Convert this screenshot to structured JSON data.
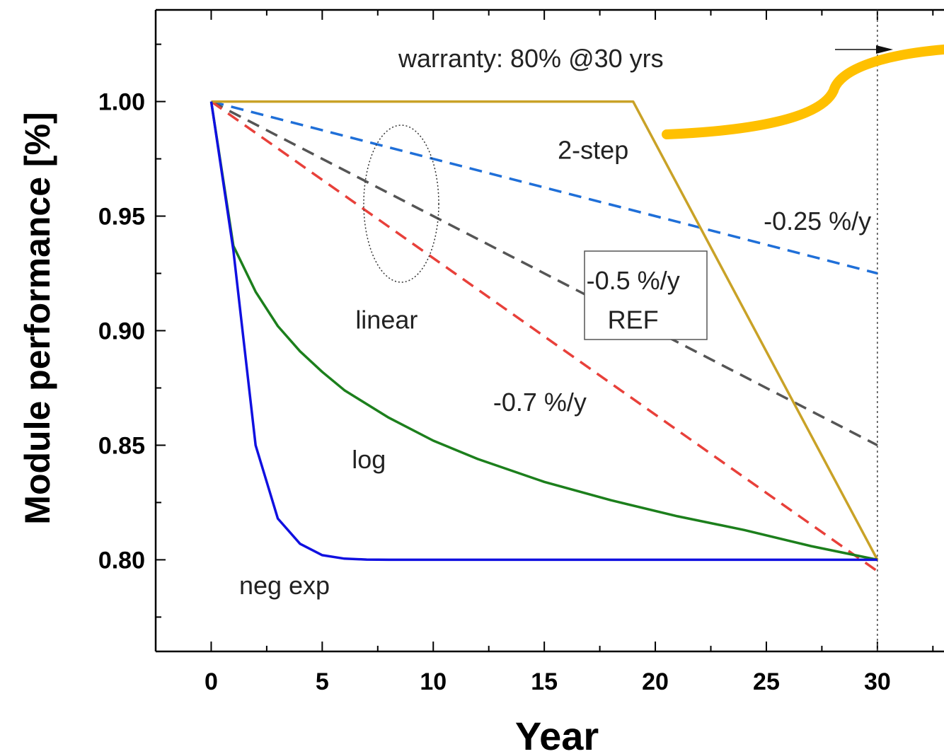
{
  "chart_data": {
    "type": "line",
    "title": "",
    "xlabel": "Year",
    "ylabel": "Module performance [%]",
    "xlim": [
      -2.5,
      33
    ],
    "ylim": [
      0.76,
      1.04
    ],
    "xticks": [
      0,
      5,
      10,
      15,
      20,
      25,
      30
    ],
    "xtick_labels": [
      "0",
      "5",
      "10",
      "15",
      "20",
      "25",
      "30"
    ],
    "yticks": [
      0.8,
      0.85,
      0.9,
      0.95,
      1.0
    ],
    "ytick_labels": [
      "0.80",
      "0.85",
      "0.90",
      "0.95",
      "1.00"
    ],
    "grid": false,
    "legend": "none",
    "series": [
      {
        "color": "#1f6fd8",
        "style": "dashed",
        "x": [
          0,
          30
        ],
        "y": [
          1.0,
          0.925
        ]
      },
      {
        "color": "#555555",
        "style": "dashed",
        "x": [
          0,
          30
        ],
        "y": [
          1.0,
          0.85
        ]
      },
      {
        "color": "#e8403a",
        "style": "dashed",
        "x": [
          0,
          30
        ],
        "y": [
          1.0,
          0.795
        ]
      },
      {
        "color": "#c9a227",
        "style": "solid",
        "x": [
          0,
          19,
          30
        ],
        "y": [
          1.0,
          1.0,
          0.8
        ]
      },
      {
        "color": "#1c7f1c",
        "style": "solid",
        "x": [
          0,
          1,
          2,
          3,
          4,
          5,
          6,
          8,
          10,
          12,
          15,
          18,
          21,
          24,
          27,
          30
        ],
        "y": [
          1.0,
          0.937,
          0.917,
          0.902,
          0.891,
          0.882,
          0.874,
          0.862,
          0.852,
          0.844,
          0.834,
          0.826,
          0.819,
          0.813,
          0.806,
          0.8
        ]
      },
      {
        "color": "#1010e0",
        "style": "solid",
        "x": [
          0,
          1,
          2,
          3,
          4,
          5,
          6,
          7,
          8,
          10,
          15,
          20,
          25,
          30
        ],
        "y": [
          1.0,
          0.935,
          0.85,
          0.818,
          0.807,
          0.802,
          0.8005,
          0.8001,
          0.8,
          0.8,
          0.8,
          0.8,
          0.8,
          0.8
        ]
      }
    ],
    "warranty_line": {
      "x": 30
    },
    "annotations": [
      {
        "text": "warranty: 80% @30 yrs",
        "x": 14.4,
        "y": 1.019
      },
      {
        "text": "2-step",
        "x": 17.2,
        "y": 0.979
      },
      {
        "text": "-0.25 %/y",
        "x": 27.3,
        "y": 0.948
      },
      {
        "text": "-0.5 %/y",
        "x": 19.0,
        "y": 0.922
      },
      {
        "text": "REF",
        "x": 19.0,
        "y": 0.905
      },
      {
        "text": "linear",
        "x": 7.9,
        "y": 0.905
      },
      {
        "text": "-0.7 %/y",
        "x": 14.8,
        "y": 0.869
      },
      {
        "text": "log",
        "x": 7.1,
        "y": 0.844
      },
      {
        "text": "neg exp",
        "x": 3.3,
        "y": 0.789
      }
    ],
    "colors": {
      "highlight_arrow": "#ffc000",
      "ref_box": "#555555"
    }
  }
}
